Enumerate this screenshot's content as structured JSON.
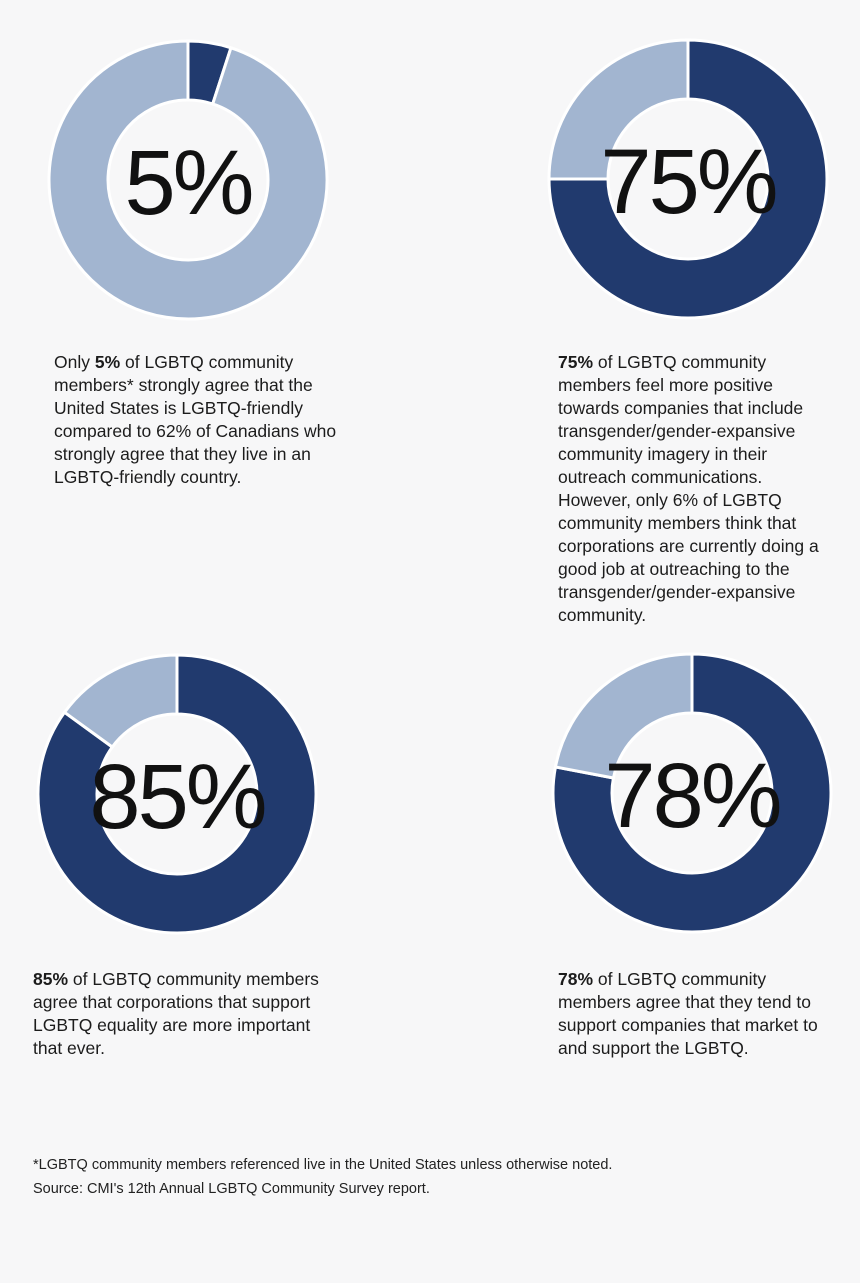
{
  "chart_data": [
    {
      "type": "pie",
      "label": "5%",
      "slices": [
        {
          "name": "agree",
          "value": 5,
          "color": "#213a6e"
        },
        {
          "name": "remainder",
          "value": 95,
          "color": "#a2b5d0"
        }
      ]
    },
    {
      "type": "pie",
      "label": "75%",
      "slices": [
        {
          "name": "agree",
          "value": 75,
          "color": "#213a6e"
        },
        {
          "name": "remainder",
          "value": 25,
          "color": "#a2b5d0"
        }
      ]
    },
    {
      "type": "pie",
      "label": "85%",
      "slices": [
        {
          "name": "agree",
          "value": 85,
          "color": "#213a6e"
        },
        {
          "name": "remainder",
          "value": 15,
          "color": "#a2b5d0"
        }
      ]
    },
    {
      "type": "pie",
      "label": "78%",
      "slices": [
        {
          "name": "agree",
          "value": 78,
          "color": "#213a6e"
        },
        {
          "name": "remainder",
          "value": 22,
          "color": "#a2b5d0"
        }
      ]
    }
  ],
  "captions": [
    {
      "bold": "5%",
      "before": "Only ",
      "after": " of LGBTQ community members* strongly agree that the United States is LGBTQ-friendly compared to 62% of Canadians who strongly agree that they live in an LGBTQ-friendly country."
    },
    {
      "bold": "75%",
      "before": "",
      "after": " of LGBTQ community members feel more positive towards companies that include transgender/gender-expansive community imagery in their outreach communications. However, only 6% of LGBTQ community members think that corporations are currently doing a good job at outreaching to the transgender/gender-expansive community."
    },
    {
      "bold": "85%",
      "before": "",
      "after": " of LGBTQ community members agree that corporations that support LGBTQ equality are more important that ever."
    },
    {
      "bold": "78%",
      "before": "",
      "after": " of LGBTQ community members agree that they tend to support companies that market to and support the LGBTQ."
    }
  ],
  "footnote": {
    "note": "*LGBTQ community members referenced live in the United States unless otherwise noted.",
    "source": "Source: CMI's 12th Annual LGBTQ Community Survey report."
  }
}
